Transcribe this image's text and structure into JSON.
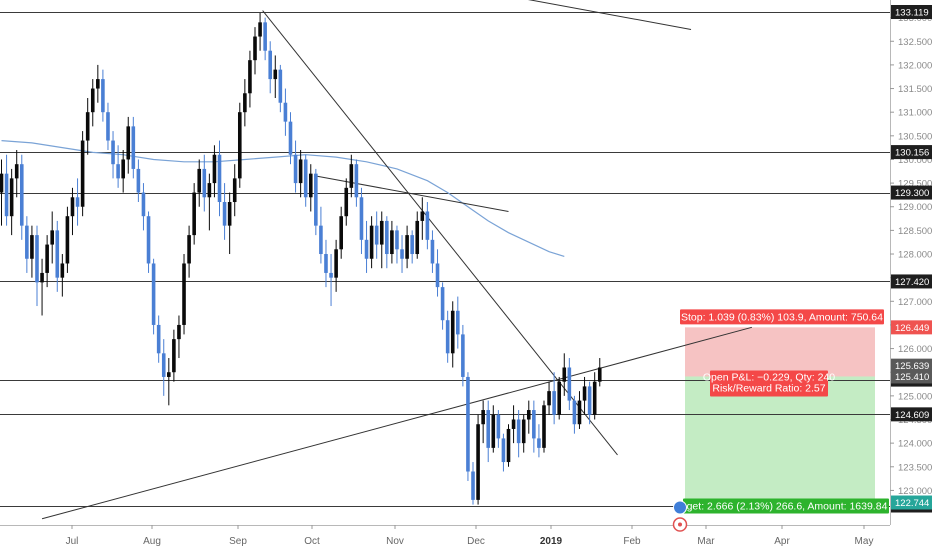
{
  "chart_data": {
    "type": "candlestick",
    "instrument_timeframe": "daily",
    "x_labels": [
      "Jul",
      "Aug",
      "Sep",
      "Oct",
      "Nov",
      "Dec",
      "2019",
      "Feb",
      "Mar",
      "Apr",
      "May"
    ],
    "y_axis": {
      "range": [
        122.4,
        133.3
      ],
      "ticks": [
        123.0,
        123.5,
        124.0,
        124.5,
        125.0,
        125.5,
        126.0,
        126.5,
        127.0,
        127.5,
        128.0,
        128.5,
        129.0,
        129.5,
        130.0,
        130.5,
        131.0,
        131.5,
        132.0,
        132.5,
        133.0
      ],
      "tick_labels": [
        "123.000",
        "123.500",
        "124.000",
        "124.500",
        "125.000",
        "125.500",
        "126.000",
        "126.500",
        "127.000",
        "127.500",
        "128.000",
        "128.500",
        "129.000",
        "129.500",
        "130.000",
        "130.500",
        "131.000",
        "131.500",
        "132.000",
        "132.500",
        "133.000"
      ]
    },
    "horizontal_levels": [
      {
        "value": 133.119,
        "label": "133.119"
      },
      {
        "value": 130.156,
        "label": "130.156"
      },
      {
        "value": 129.3,
        "label": "129.300"
      },
      {
        "value": 127.42,
        "label": "127.420"
      },
      {
        "value": 125.344,
        "label": "125.344"
      },
      {
        "value": 124.609,
        "label": "124.609"
      },
      {
        "value": 122.681,
        "label": "122.681"
      }
    ],
    "price_markers": [
      {
        "value": 126.449,
        "label": "126.449",
        "color": "#ef5350"
      },
      {
        "value": 125.639,
        "label": "125.639",
        "color": "#5a5a5a"
      },
      {
        "value": 125.41,
        "label": "125.410",
        "color": "#5a5a5a"
      },
      {
        "value": 122.744,
        "label": "122.744",
        "color": "#26a69a"
      }
    ],
    "candles": [
      {
        "o": 129.3,
        "h": 130.0,
        "l": 128.6,
        "c": 129.7
      },
      {
        "o": 129.7,
        "h": 130.1,
        "l": 128.6,
        "c": 128.8
      },
      {
        "o": 128.8,
        "h": 129.8,
        "l": 128.4,
        "c": 129.6
      },
      {
        "o": 129.6,
        "h": 130.2,
        "l": 129.2,
        "c": 129.9
      },
      {
        "o": 129.9,
        "h": 130.1,
        "l": 128.3,
        "c": 128.6
      },
      {
        "o": 128.6,
        "h": 128.8,
        "l": 127.6,
        "c": 127.9
      },
      {
        "o": 127.9,
        "h": 128.6,
        "l": 127.5,
        "c": 128.4
      },
      {
        "o": 128.4,
        "h": 128.6,
        "l": 126.9,
        "c": 127.4
      },
      {
        "o": 127.4,
        "h": 127.9,
        "l": 126.7,
        "c": 127.6
      },
      {
        "o": 127.6,
        "h": 128.4,
        "l": 127.3,
        "c": 128.2
      },
      {
        "o": 128.2,
        "h": 128.9,
        "l": 127.8,
        "c": 128.5
      },
      {
        "o": 128.5,
        "h": 128.7,
        "l": 127.2,
        "c": 127.5
      },
      {
        "o": 127.5,
        "h": 128.0,
        "l": 127.1,
        "c": 127.8
      },
      {
        "o": 127.8,
        "h": 129.0,
        "l": 127.6,
        "c": 128.8
      },
      {
        "o": 128.8,
        "h": 129.4,
        "l": 128.4,
        "c": 129.2
      },
      {
        "o": 129.2,
        "h": 129.6,
        "l": 128.6,
        "c": 129.0
      },
      {
        "o": 129.0,
        "h": 130.6,
        "l": 128.8,
        "c": 130.4
      },
      {
        "o": 130.4,
        "h": 131.3,
        "l": 130.1,
        "c": 131.0
      },
      {
        "o": 131.0,
        "h": 131.7,
        "l": 130.7,
        "c": 131.5
      },
      {
        "o": 131.5,
        "h": 132.0,
        "l": 131.2,
        "c": 131.7
      },
      {
        "o": 131.7,
        "h": 131.9,
        "l": 130.8,
        "c": 131.0
      },
      {
        "o": 131.0,
        "h": 131.2,
        "l": 130.2,
        "c": 130.4
      },
      {
        "o": 130.4,
        "h": 130.6,
        "l": 129.6,
        "c": 129.9
      },
      {
        "o": 129.9,
        "h": 130.3,
        "l": 129.4,
        "c": 129.6
      },
      {
        "o": 129.6,
        "h": 130.2,
        "l": 129.3,
        "c": 130.0
      },
      {
        "o": 130.0,
        "h": 130.9,
        "l": 129.7,
        "c": 130.7
      },
      {
        "o": 130.7,
        "h": 130.9,
        "l": 129.6,
        "c": 129.8
      },
      {
        "o": 129.8,
        "h": 130.0,
        "l": 129.1,
        "c": 129.3
      },
      {
        "o": 129.3,
        "h": 129.5,
        "l": 128.5,
        "c": 128.8
      },
      {
        "o": 128.8,
        "h": 128.9,
        "l": 127.6,
        "c": 127.8
      },
      {
        "o": 127.8,
        "h": 127.9,
        "l": 126.3,
        "c": 126.5
      },
      {
        "o": 126.5,
        "h": 126.7,
        "l": 125.7,
        "c": 125.9
      },
      {
        "o": 125.9,
        "h": 126.2,
        "l": 125.0,
        "c": 125.4
      },
      {
        "o": 125.4,
        "h": 125.8,
        "l": 124.8,
        "c": 125.5
      },
      {
        "o": 125.5,
        "h": 126.4,
        "l": 125.3,
        "c": 126.2
      },
      {
        "o": 126.2,
        "h": 126.7,
        "l": 125.8,
        "c": 126.5
      },
      {
        "o": 126.5,
        "h": 128.0,
        "l": 126.3,
        "c": 127.8
      },
      {
        "o": 127.8,
        "h": 128.6,
        "l": 127.5,
        "c": 128.4
      },
      {
        "o": 128.4,
        "h": 129.5,
        "l": 128.2,
        "c": 129.3
      },
      {
        "o": 129.3,
        "h": 130.0,
        "l": 129.0,
        "c": 129.8
      },
      {
        "o": 129.8,
        "h": 130.1,
        "l": 128.9,
        "c": 129.2
      },
      {
        "o": 129.2,
        "h": 129.7,
        "l": 128.5,
        "c": 129.5
      },
      {
        "o": 129.5,
        "h": 130.3,
        "l": 129.2,
        "c": 130.1
      },
      {
        "o": 130.1,
        "h": 130.4,
        "l": 128.8,
        "c": 129.1
      },
      {
        "o": 129.1,
        "h": 129.5,
        "l": 128.3,
        "c": 128.6
      },
      {
        "o": 128.6,
        "h": 129.3,
        "l": 128.0,
        "c": 129.1
      },
      {
        "o": 129.1,
        "h": 129.9,
        "l": 128.8,
        "c": 129.6
      },
      {
        "o": 129.6,
        "h": 131.2,
        "l": 129.4,
        "c": 131.0
      },
      {
        "o": 131.0,
        "h": 131.7,
        "l": 130.7,
        "c": 131.4
      },
      {
        "o": 131.4,
        "h": 132.3,
        "l": 131.1,
        "c": 132.1
      },
      {
        "o": 132.1,
        "h": 132.8,
        "l": 131.8,
        "c": 132.6
      },
      {
        "o": 132.6,
        "h": 133.1,
        "l": 132.3,
        "c": 132.9
      },
      {
        "o": 132.9,
        "h": 133.0,
        "l": 132.1,
        "c": 132.3
      },
      {
        "o": 132.3,
        "h": 132.5,
        "l": 131.4,
        "c": 131.7
      },
      {
        "o": 131.7,
        "h": 132.2,
        "l": 131.3,
        "c": 131.9
      },
      {
        "o": 131.9,
        "h": 132.0,
        "l": 131.0,
        "c": 131.2
      },
      {
        "o": 131.2,
        "h": 131.5,
        "l": 130.5,
        "c": 130.8
      },
      {
        "o": 130.8,
        "h": 131.0,
        "l": 129.9,
        "c": 130.1
      },
      {
        "o": 130.1,
        "h": 130.4,
        "l": 129.3,
        "c": 129.5
      },
      {
        "o": 129.5,
        "h": 130.2,
        "l": 129.2,
        "c": 130.0
      },
      {
        "o": 130.0,
        "h": 130.1,
        "l": 129.0,
        "c": 129.2
      },
      {
        "o": 129.2,
        "h": 129.9,
        "l": 128.9,
        "c": 129.7
      },
      {
        "o": 129.7,
        "h": 129.8,
        "l": 128.4,
        "c": 128.6
      },
      {
        "o": 128.6,
        "h": 129.0,
        "l": 127.8,
        "c": 128.0
      },
      {
        "o": 128.0,
        "h": 128.3,
        "l": 127.3,
        "c": 127.6
      },
      {
        "o": 127.6,
        "h": 128.0,
        "l": 126.9,
        "c": 127.5
      },
      {
        "o": 127.5,
        "h": 128.3,
        "l": 127.2,
        "c": 128.1
      },
      {
        "o": 128.1,
        "h": 129.0,
        "l": 127.9,
        "c": 128.8
      },
      {
        "o": 128.8,
        "h": 129.6,
        "l": 128.6,
        "c": 129.4
      },
      {
        "o": 129.4,
        "h": 130.1,
        "l": 129.2,
        "c": 129.9
      },
      {
        "o": 129.9,
        "h": 130.0,
        "l": 129.0,
        "c": 129.2
      },
      {
        "o": 129.2,
        "h": 129.4,
        "l": 128.0,
        "c": 128.3
      },
      {
        "o": 128.3,
        "h": 128.7,
        "l": 127.6,
        "c": 127.9
      },
      {
        "o": 127.9,
        "h": 128.8,
        "l": 127.7,
        "c": 128.6
      },
      {
        "o": 128.6,
        "h": 128.9,
        "l": 127.9,
        "c": 128.2
      },
      {
        "o": 128.2,
        "h": 128.9,
        "l": 127.7,
        "c": 128.7
      },
      {
        "o": 128.7,
        "h": 128.8,
        "l": 127.7,
        "c": 128.0
      },
      {
        "o": 128.0,
        "h": 128.7,
        "l": 127.8,
        "c": 128.5
      },
      {
        "o": 128.5,
        "h": 128.6,
        "l": 127.8,
        "c": 128.1
      },
      {
        "o": 128.1,
        "h": 128.4,
        "l": 127.6,
        "c": 127.9
      },
      {
        "o": 127.9,
        "h": 128.6,
        "l": 127.7,
        "c": 128.4
      },
      {
        "o": 128.4,
        "h": 128.5,
        "l": 127.8,
        "c": 128.0
      },
      {
        "o": 128.0,
        "h": 128.9,
        "l": 127.9,
        "c": 128.7
      },
      {
        "o": 128.7,
        "h": 129.2,
        "l": 128.3,
        "c": 128.9
      },
      {
        "o": 128.9,
        "h": 129.1,
        "l": 128.1,
        "c": 128.3
      },
      {
        "o": 128.3,
        "h": 128.5,
        "l": 127.6,
        "c": 127.8
      },
      {
        "o": 127.8,
        "h": 128.1,
        "l": 127.1,
        "c": 127.3
      },
      {
        "o": 127.3,
        "h": 127.4,
        "l": 126.4,
        "c": 126.6
      },
      {
        "o": 126.6,
        "h": 126.8,
        "l": 125.7,
        "c": 125.9
      },
      {
        "o": 125.9,
        "h": 127.0,
        "l": 125.6,
        "c": 126.8
      },
      {
        "o": 126.8,
        "h": 127.1,
        "l": 126.0,
        "c": 126.3
      },
      {
        "o": 126.3,
        "h": 126.5,
        "l": 125.2,
        "c": 125.4
      },
      {
        "o": 125.4,
        "h": 125.5,
        "l": 123.2,
        "c": 123.4
      },
      {
        "o": 123.4,
        "h": 123.6,
        "l": 122.7,
        "c": 122.8
      },
      {
        "o": 122.8,
        "h": 124.6,
        "l": 122.7,
        "c": 124.4
      },
      {
        "o": 124.4,
        "h": 124.9,
        "l": 124.0,
        "c": 124.7
      },
      {
        "o": 124.7,
        "h": 124.9,
        "l": 123.6,
        "c": 123.9
      },
      {
        "o": 123.9,
        "h": 124.8,
        "l": 123.8,
        "c": 124.6
      },
      {
        "o": 124.6,
        "h": 124.7,
        "l": 123.9,
        "c": 124.1
      },
      {
        "o": 124.1,
        "h": 124.2,
        "l": 123.4,
        "c": 123.6
      },
      {
        "o": 123.6,
        "h": 124.4,
        "l": 123.5,
        "c": 124.3
      },
      {
        "o": 124.3,
        "h": 124.8,
        "l": 124.0,
        "c": 124.5
      },
      {
        "o": 124.5,
        "h": 124.7,
        "l": 123.7,
        "c": 124.0
      },
      {
        "o": 124.0,
        "h": 124.6,
        "l": 123.8,
        "c": 124.5
      },
      {
        "o": 124.5,
        "h": 124.9,
        "l": 124.2,
        "c": 124.7
      },
      {
        "o": 124.7,
        "h": 124.9,
        "l": 123.8,
        "c": 124.1
      },
      {
        "o": 124.1,
        "h": 124.4,
        "l": 123.7,
        "c": 123.9
      },
      {
        "o": 123.9,
        "h": 124.9,
        "l": 123.8,
        "c": 124.8
      },
      {
        "o": 124.8,
        "h": 125.3,
        "l": 124.6,
        "c": 125.1
      },
      {
        "o": 125.1,
        "h": 125.5,
        "l": 124.4,
        "c": 124.6
      },
      {
        "o": 124.6,
        "h": 125.4,
        "l": 124.5,
        "c": 125.3
      },
      {
        "o": 125.3,
        "h": 125.9,
        "l": 125.0,
        "c": 125.6
      },
      {
        "o": 125.6,
        "h": 125.8,
        "l": 124.7,
        "c": 124.9
      },
      {
        "o": 124.9,
        "h": 125.0,
        "l": 124.2,
        "c": 124.4
      },
      {
        "o": 124.4,
        "h": 125.1,
        "l": 124.3,
        "c": 124.9
      },
      {
        "o": 124.9,
        "h": 125.4,
        "l": 124.6,
        "c": 125.2
      },
      {
        "o": 125.2,
        "h": 125.3,
        "l": 124.4,
        "c": 124.6
      },
      {
        "o": 124.6,
        "h": 125.5,
        "l": 124.5,
        "c": 125.3
      },
      {
        "o": 125.3,
        "h": 125.8,
        "l": 125.2,
        "c": 125.6
      }
    ],
    "moving_average": [
      [
        0,
        130.4
      ],
      [
        6,
        130.35
      ],
      [
        12,
        130.25
      ],
      [
        18,
        130.15
      ],
      [
        24,
        130.1
      ],
      [
        30,
        130.0
      ],
      [
        36,
        129.95
      ],
      [
        42,
        129.95
      ],
      [
        48,
        130.0
      ],
      [
        54,
        130.05
      ],
      [
        60,
        130.1
      ],
      [
        66,
        130.05
      ],
      [
        72,
        129.95
      ],
      [
        78,
        129.8
      ],
      [
        84,
        129.55
      ],
      [
        88,
        129.3
      ],
      [
        92,
        129.0
      ],
      [
        96,
        128.7
      ],
      [
        100,
        128.45
      ],
      [
        104,
        128.25
      ],
      [
        108,
        128.05
      ],
      [
        111,
        127.95
      ]
    ],
    "trendlines": [
      {
        "from": [
          51.5,
          133.15
        ],
        "to": [
          121.5,
          123.75
        ]
      },
      {
        "from": [
          8,
          122.4
        ],
        "to": [
          148,
          126.45
        ]
      },
      {
        "from": [
          62,
          129.65
        ],
        "to": [
          100,
          128.9
        ]
      },
      {
        "from": [
          103,
          133.4
        ],
        "to": [
          136,
          132.75
        ]
      }
    ],
    "position": {
      "type": "short",
      "entry": 125.41,
      "stop": 126.449,
      "target": 122.744,
      "stop_label": "Stop: 1.039 (0.83%) 103.9, Amount: 750.64",
      "target_label": "get: 2.666 (2.13%) 266.6, Amount: 1639.84",
      "info_line1": "Open P&L: −0.229, Qty: 240",
      "info_line2": "Risk/Reward Ratio: 2.57"
    },
    "colors": {
      "down_candle": "#4a7fd4",
      "up_candle": "#0a0a0a",
      "moving_average": "#7aa3d6",
      "levels": "#3a3a3a",
      "stop_zone": "#f6c3c3",
      "target_zone": "#c4ecc4",
      "stop_label_bg": "#f44848",
      "target_label_bg": "#2db32d"
    }
  }
}
